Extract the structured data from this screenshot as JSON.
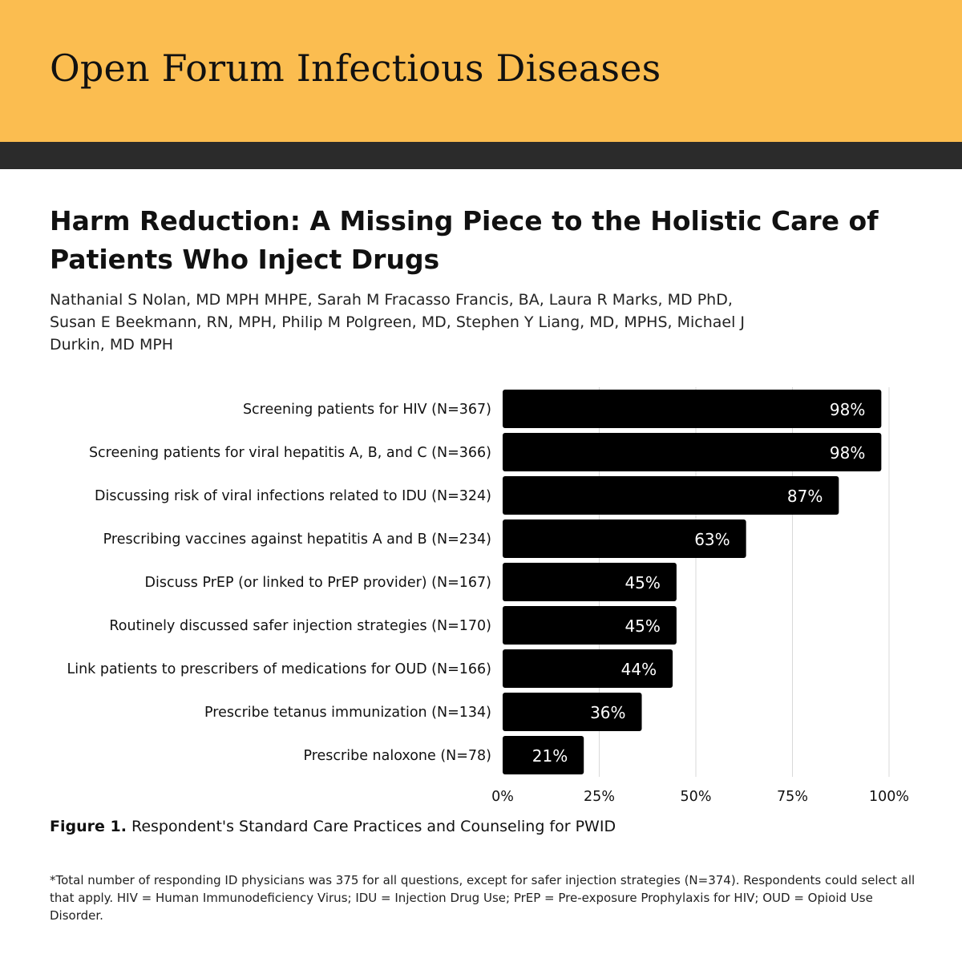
{
  "header": {
    "journal": "Open Forum Infectious Diseases"
  },
  "article": {
    "title": "Harm Reduction: A Missing Piece to the Holistic Care of Patients Who Inject Drugs",
    "authors": "Nathanial S Nolan, MD MPH MHPE, Sarah M Fracasso Francis, BA, Laura R Marks, MD PhD, Susan E Beekmann, RN, MPH, Philip M Polgreen, MD, Stephen Y Liang, MD, MPHS, Michael J Durkin, MD MPH"
  },
  "figure": {
    "label": "Figure 1.",
    "caption": "Respondent's Standard Care Practices and Counseling for PWID",
    "footnote": "*Total number of responding ID physicians was 375 for all questions, except for safer injection strategies (N=374). Respondents could select all that apply. HIV = Human Immunodeficiency Virus; IDU = Injection Drug Use; PrEP = Pre-exposure Prophylaxis for HIV; OUD = Opioid Use Disorder."
  },
  "chart_data": {
    "type": "bar",
    "orientation": "horizontal",
    "categories": [
      "Screening patients for HIV (N=367)",
      "Screening patients for viral hepatitis A, B, and C (N=366)",
      "Discussing risk of viral infections related to IDU (N=324)",
      "Prescribing vaccines against hepatitis A and B (N=234)",
      "Discuss PrEP (or linked to PrEP provider) (N=167)",
      "Routinely discussed safer injection strategies (N=170)",
      "Link patients to prescribers of medications for OUD (N=166)",
      "Prescribe tetanus immunization (N=134)",
      "Prescribe naloxone (N=78)"
    ],
    "values": [
      98,
      98,
      87,
      63,
      45,
      45,
      44,
      36,
      21
    ],
    "value_labels": [
      "98%",
      "98%",
      "87%",
      "63%",
      "45%",
      "45%",
      "44%",
      "36%",
      "21%"
    ],
    "xlim": [
      0,
      100
    ],
    "x_ticks": [
      0,
      25,
      50,
      75,
      100
    ],
    "x_tick_labels": [
      "0%",
      "25%",
      "50%",
      "75%",
      "100%"
    ],
    "grid": true,
    "bar_color": "#000000",
    "value_label_color": "#ffffff"
  }
}
